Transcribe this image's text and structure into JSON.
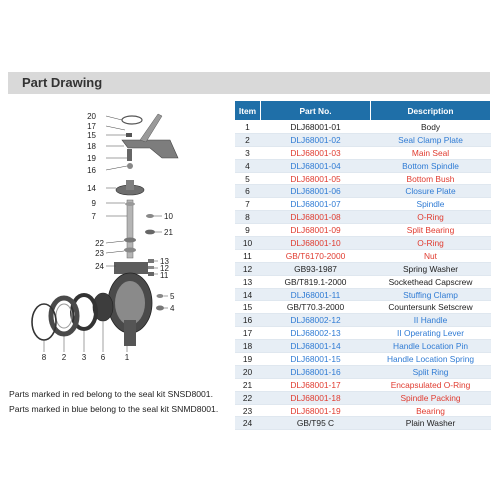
{
  "header": {
    "title": "Part Drawing"
  },
  "notes": {
    "red": "Parts marked in red  belong to the seal kit SNSD8001.",
    "blue": "Parts marked in blue  belong to the seal kit SNMD8001."
  },
  "table": {
    "headers": {
      "item": "Item",
      "part_no": "Part No.",
      "description": "Description"
    },
    "colors": {
      "red": "#e03b2f",
      "blue": "#2f7bd4",
      "black": "#222222",
      "header_bg": "#1f6fa8"
    },
    "rows": [
      {
        "item": "1",
        "part_no": "DLJ68001-01",
        "description": "Body",
        "color": "black"
      },
      {
        "item": "2",
        "part_no": "DLJ68001-02",
        "description": "Seal Clamp Plate",
        "color": "blue"
      },
      {
        "item": "3",
        "part_no": "DLJ68001-03",
        "description": "Main Seal",
        "color": "red"
      },
      {
        "item": "4",
        "part_no": "DLJ68001-04",
        "description": "Bottom Spindle",
        "color": "blue"
      },
      {
        "item": "5",
        "part_no": "DLJ68001-05",
        "description": "Bottom Bush",
        "color": "red"
      },
      {
        "item": "6",
        "part_no": "DLJ68001-06",
        "description": "Closure Plate",
        "color": "blue"
      },
      {
        "item": "7",
        "part_no": "DLJ68001-07",
        "description": "Spindle",
        "color": "blue"
      },
      {
        "item": "8",
        "part_no": "DLJ68001-08",
        "description": "O-Ring",
        "color": "red"
      },
      {
        "item": "9",
        "part_no": "DLJ68001-09",
        "description": "Split Bearing",
        "color": "red"
      },
      {
        "item": "10",
        "part_no": "DLJ68001-10",
        "description": "O-Ring",
        "color": "red"
      },
      {
        "item": "11",
        "part_no": "GB/T6170-2000",
        "description": "Nut",
        "color": "red"
      },
      {
        "item": "12",
        "part_no": "GB93-1987",
        "description": "Spring Washer",
        "color": "black"
      },
      {
        "item": "13",
        "part_no": "GB/T819.1-2000",
        "description": "Sockethead Capscrew",
        "color": "black"
      },
      {
        "item": "14",
        "part_no": "DLJ68001-11",
        "description": "Stuffing Clamp",
        "color": "blue"
      },
      {
        "item": "15",
        "part_no": "GB/T70.3-2000",
        "description": "Countersunk Setscrew",
        "color": "black"
      },
      {
        "item": "16",
        "part_no": "DLJ68002-12",
        "description": "II Handle",
        "color": "blue"
      },
      {
        "item": "17",
        "part_no": "DLJ68002-13",
        "description": "II Operating Lever",
        "color": "blue"
      },
      {
        "item": "18",
        "part_no": "DLJ68001-14",
        "description": "Handle Location Pin",
        "color": "blue"
      },
      {
        "item": "19",
        "part_no": "DLJ68001-15",
        "description": "Handle Location Spring",
        "color": "blue"
      },
      {
        "item": "20",
        "part_no": "DLJ68001-16",
        "description": "Split Ring",
        "color": "blue"
      },
      {
        "item": "21",
        "part_no": "DLJ68001-17",
        "description": "Encapsulated O-Ring",
        "color": "red"
      },
      {
        "item": "22",
        "part_no": "DLJ68001-18",
        "description": "Spindle Packing",
        "color": "red"
      },
      {
        "item": "23",
        "part_no": "DLJ68001-19",
        "description": "Bearing",
        "color": "red"
      },
      {
        "item": "24",
        "part_no": "GB/T95 C",
        "description": "Plain Washer",
        "color": "black"
      }
    ]
  },
  "drawing": {
    "callouts_left": [
      "20",
      "17",
      "15",
      "18",
      "19",
      "16",
      "14",
      "9",
      "7",
      "22",
      "23",
      "24"
    ],
    "callouts_right": [
      "10",
      "21",
      "13",
      "12",
      "11",
      "5",
      "4"
    ],
    "callouts_bottom": [
      "8",
      "2",
      "3",
      "6",
      "1"
    ]
  }
}
